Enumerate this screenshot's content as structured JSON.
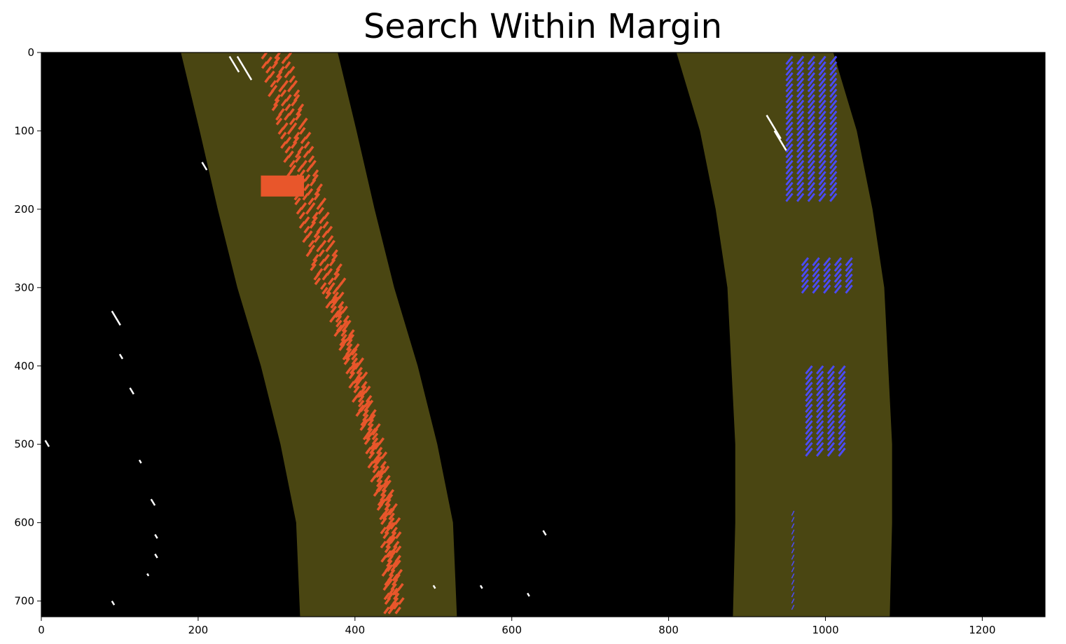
{
  "chart_data": {
    "type": "image",
    "title": "Search Within Margin",
    "xlabel": "",
    "ylabel": "",
    "xlim": [
      0,
      1280
    ],
    "ylim": [
      720,
      0
    ],
    "xticks": [
      0,
      200,
      400,
      600,
      800,
      1000,
      1200
    ],
    "yticks": [
      0,
      100,
      200,
      300,
      400,
      500,
      600,
      700
    ],
    "grid": false,
    "colors": {
      "background": "#000000",
      "margin_band": "#4a4612",
      "left_lane_pixels": "#e8562b",
      "right_lane_pixels": "#4b4bf5",
      "other_pixels": "#ffffff"
    },
    "margin_bands": [
      {
        "name": "left",
        "center_x": [
          [
            0,
            278
          ],
          [
            100,
            302
          ],
          [
            200,
            325
          ],
          [
            300,
            350
          ],
          [
            400,
            380
          ],
          [
            500,
            405
          ],
          [
            600,
            425
          ],
          [
            720,
            430
          ]
        ],
        "half_width": 100
      },
      {
        "name": "right",
        "center_x": [
          [
            0,
            910
          ],
          [
            100,
            940
          ],
          [
            200,
            960
          ],
          [
            300,
            975
          ],
          [
            400,
            980
          ],
          [
            500,
            985
          ],
          [
            600,
            985
          ],
          [
            720,
            982
          ]
        ],
        "half_width": 100
      }
    ]
  }
}
